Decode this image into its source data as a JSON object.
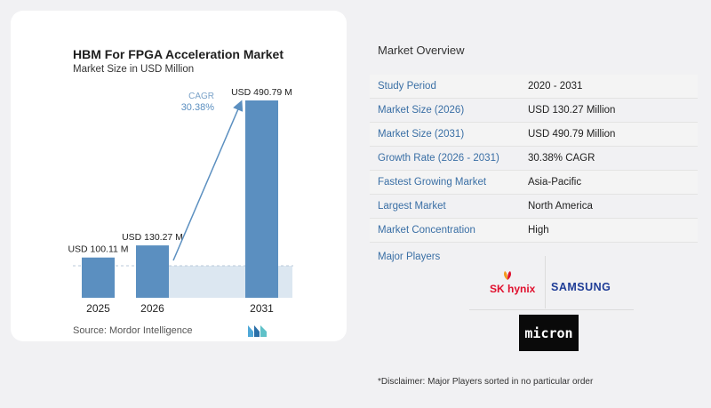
{
  "chart_data": {
    "type": "bar",
    "title": "HBM For FPGA Acceleration Market",
    "subtitle": "Market Size in USD Million",
    "categories": [
      "2025",
      "2026",
      "2031"
    ],
    "values": [
      100.11,
      130.27,
      490.79
    ],
    "data_labels": [
      "USD 100.11 M",
      "USD 130.27 M",
      "USD 490.79 M"
    ],
    "cagr_label": "CAGR",
    "cagr_value": "30.38%",
    "bar_color": "#5b8fc0",
    "accent_color": "#5b8fc0"
  },
  "source": "Source:  Mordor Intelligence",
  "overview": {
    "title": "Market Overview",
    "rows": [
      {
        "label": "Study Period",
        "value": "2020 - 2031"
      },
      {
        "label": "Market Size (2026)",
        "value": "USD 130.27 Million"
      },
      {
        "label": "Market Size (2031)",
        "value": "USD 490.79 Million"
      },
      {
        "label": "Growth Rate (2026 - 2031)",
        "value": "30.38% CAGR"
      },
      {
        "label": "Fastest Growing Market",
        "value": "Asia-Pacific"
      },
      {
        "label": "Largest Market",
        "value": "North America"
      },
      {
        "label": "Market Concentration",
        "value": "High"
      }
    ],
    "label_color": "#3a6fa5"
  },
  "players": {
    "title": "Major Players",
    "sk_hynix": "SK hynix",
    "samsung": "SAMSUNG",
    "micron": "micron"
  },
  "disclaimer": "*Disclaimer: Major Players sorted in no particular order"
}
